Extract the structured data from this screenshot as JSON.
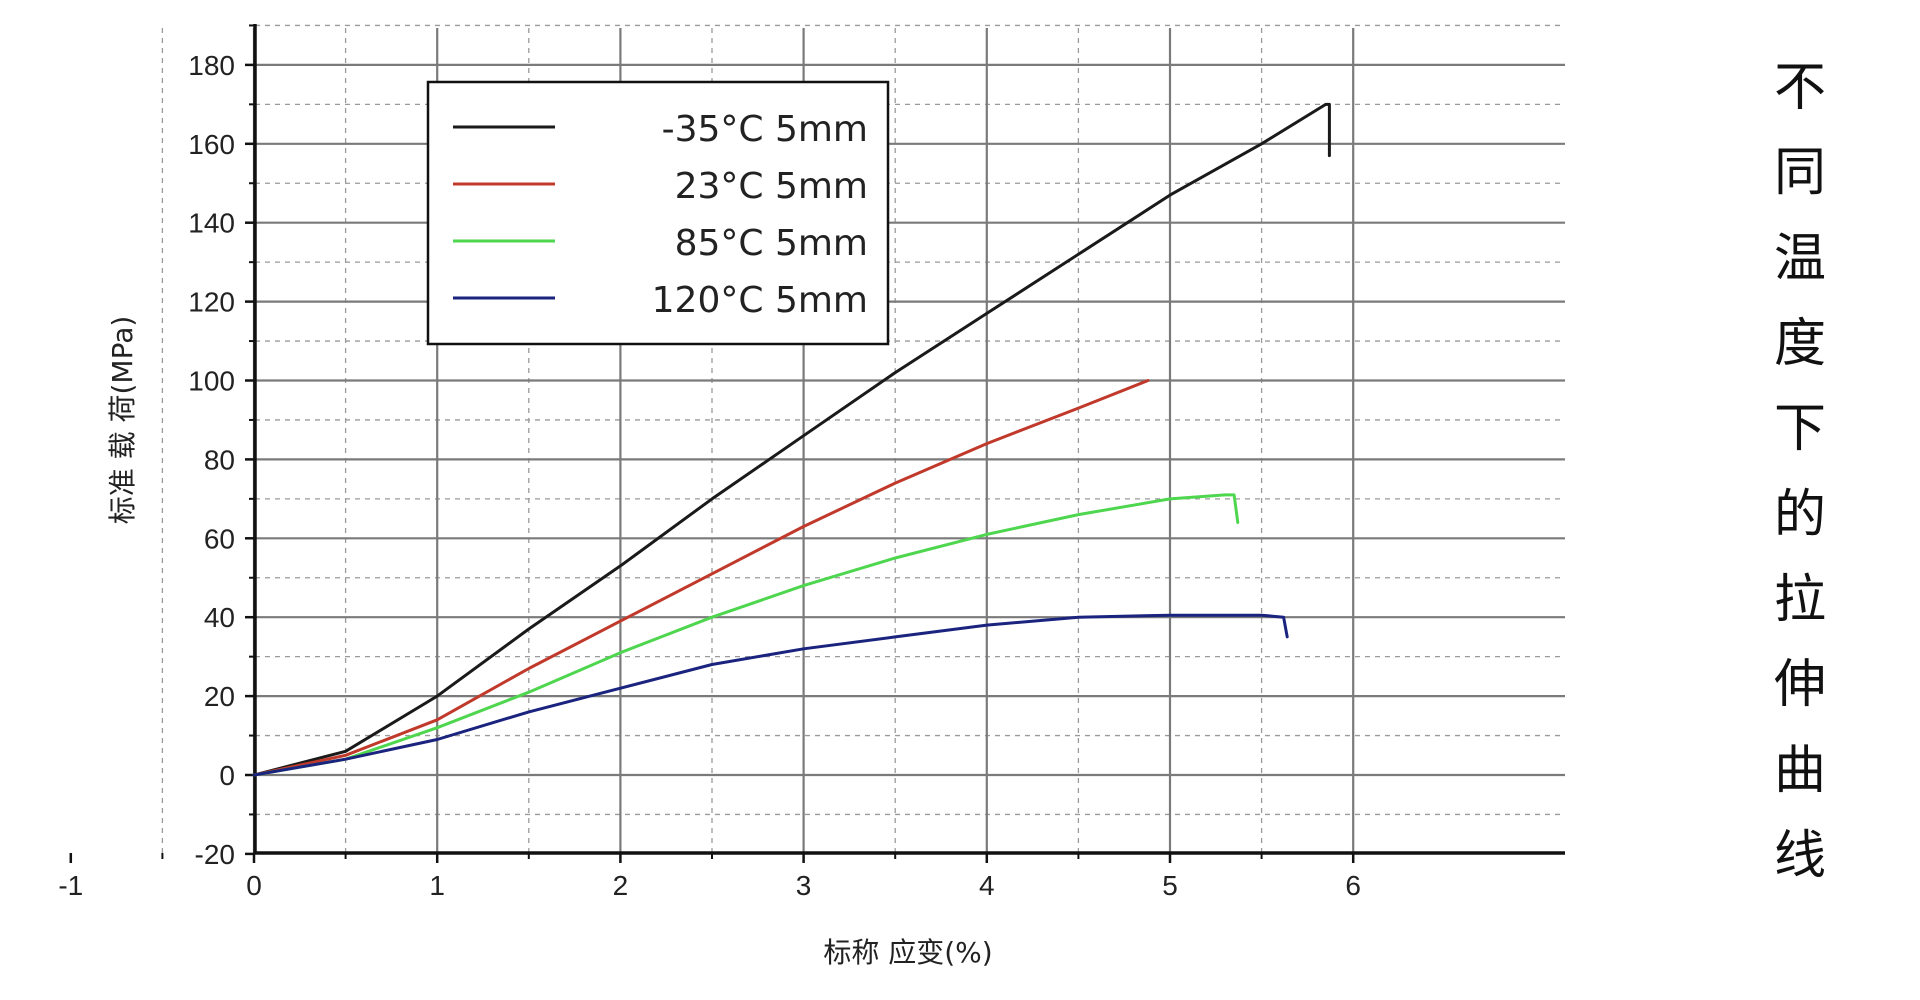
{
  "chart_data": {
    "type": "line",
    "title": "",
    "xlabel": "标称 应变(%)",
    "ylabel": "标准 载 荷(MPa)",
    "xlim": [
      -1,
      6
    ],
    "ylim": [
      -20,
      190
    ],
    "x_ticks": [
      "-1",
      "0",
      "1",
      "2",
      "3",
      "4",
      "5",
      "6"
    ],
    "y_ticks": [
      "-20",
      "0",
      "20",
      "40",
      "60",
      "80",
      "100",
      "120",
      "140",
      "160",
      "180"
    ],
    "grid": true,
    "legend_position": "top-left",
    "series": [
      {
        "name": "-35°C    5mm",
        "color": "#1a1a1a",
        "points": [
          [
            0,
            0
          ],
          [
            0.5,
            6
          ],
          [
            1,
            20
          ],
          [
            1.5,
            37
          ],
          [
            2,
            53
          ],
          [
            2.5,
            70
          ],
          [
            3,
            86
          ],
          [
            3.5,
            102
          ],
          [
            4,
            117
          ],
          [
            4.5,
            132
          ],
          [
            5,
            147
          ],
          [
            5.5,
            160
          ],
          [
            5.85,
            170
          ],
          [
            5.87,
            170
          ],
          [
            5.87,
            157
          ]
        ]
      },
      {
        "name": "23°C    5mm",
        "color": "#c0392b",
        "points": [
          [
            0,
            0
          ],
          [
            0.5,
            5
          ],
          [
            1,
            14
          ],
          [
            1.5,
            27
          ],
          [
            2,
            39
          ],
          [
            2.5,
            51
          ],
          [
            3,
            63
          ],
          [
            3.5,
            74
          ],
          [
            4,
            84
          ],
          [
            4.5,
            93
          ],
          [
            4.88,
            100
          ]
        ]
      },
      {
        "name": "85°C    5mm",
        "color": "#4fd64f",
        "points": [
          [
            0,
            0
          ],
          [
            0.5,
            4
          ],
          [
            1,
            12
          ],
          [
            1.5,
            21
          ],
          [
            2,
            31
          ],
          [
            2.5,
            40
          ],
          [
            3,
            48
          ],
          [
            3.5,
            55
          ],
          [
            4,
            61
          ],
          [
            4.5,
            66
          ],
          [
            5,
            70
          ],
          [
            5.3,
            71
          ],
          [
            5.35,
            71
          ],
          [
            5.37,
            64
          ]
        ]
      },
      {
        "name": "120°C    5mm",
        "color": "#1a237e",
        "points": [
          [
            0,
            0
          ],
          [
            0.5,
            4
          ],
          [
            1,
            9
          ],
          [
            1.5,
            16
          ],
          [
            2,
            22
          ],
          [
            2.5,
            28
          ],
          [
            3,
            32
          ],
          [
            3.5,
            35
          ],
          [
            4,
            38
          ],
          [
            4.5,
            40
          ],
          [
            5,
            40.5
          ],
          [
            5.5,
            40.5
          ],
          [
            5.62,
            40
          ],
          [
            5.64,
            35
          ]
        ]
      }
    ]
  },
  "side_title": [
    "不",
    "同",
    "温",
    "度",
    "下",
    "的",
    "拉",
    "伸",
    "曲",
    "线"
  ]
}
